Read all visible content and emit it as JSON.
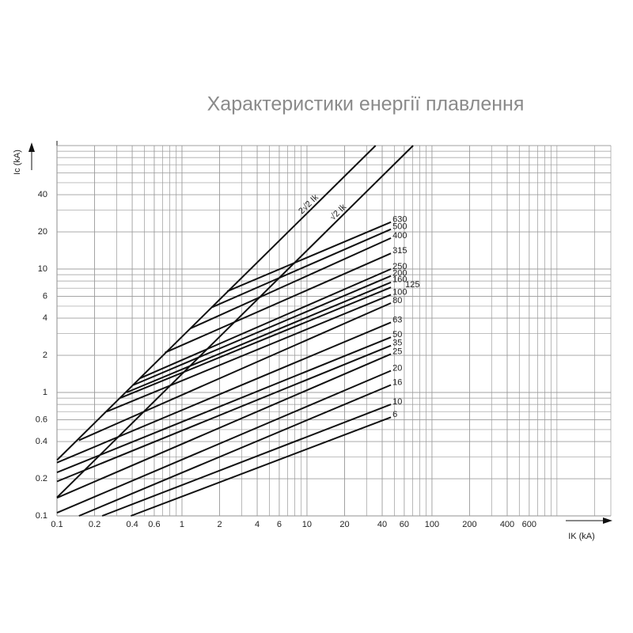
{
  "chart_data": {
    "type": "line",
    "title": "Характеристики енергії плавлення",
    "x_label": "IK (kA)",
    "y_label": "Ic (kA)",
    "xscale": "log",
    "yscale": "log",
    "grid": true,
    "color": "#111111",
    "xlim": [
      0.1,
      2700
    ],
    "ylim": [
      0.1,
      100
    ],
    "xticks": [
      0.1,
      0.2,
      0.4,
      0.6,
      1,
      2,
      4,
      6,
      10,
      20,
      40,
      60,
      100,
      200,
      400,
      600
    ],
    "yticks": [
      0.1,
      0.2,
      0.4,
      0.6,
      1,
      2,
      4,
      6,
      10,
      20,
      40
    ],
    "series": [
      {
        "name": "2√2 Ik",
        "x": [
          0.1,
          35.4
        ],
        "values": [
          0.283,
          100
        ]
      },
      {
        "name": "√2 Ik",
        "x": [
          0.1,
          70.7
        ],
        "values": [
          0.141,
          100
        ]
      },
      {
        "name": "630",
        "x": [
          2.3,
          47
        ],
        "values": [
          6.6,
          24
        ]
      },
      {
        "name": "500",
        "x": [
          1.74,
          47
        ],
        "values": [
          4.9,
          21
        ]
      },
      {
        "name": "400",
        "x": [
          1.17,
          47
        ],
        "values": [
          3.3,
          17.8
        ]
      },
      {
        "name": "315",
        "x": [
          0.73,
          47
        ],
        "values": [
          2.1,
          13.4
        ]
      },
      {
        "name": "250",
        "x": [
          0.46,
          47
        ],
        "values": [
          1.3,
          10
        ]
      },
      {
        "name": "200",
        "x": [
          0.41,
          47
        ],
        "values": [
          1.15,
          8.8
        ]
      },
      {
        "name": "160",
        "x": [
          0.36,
          47
        ],
        "values": [
          1.0,
          7.8
        ]
      },
      {
        "name": "125",
        "x": [
          0.32,
          47
        ],
        "values": [
          0.9,
          7.1
        ]
      },
      {
        "name": "100",
        "x": [
          0.25,
          47
        ],
        "values": [
          0.7,
          6.2
        ]
      },
      {
        "name": "80",
        "x": [
          0.15,
          47
        ],
        "values": [
          0.41,
          5.3
        ]
      },
      {
        "name": "63",
        "x": [
          0.1,
          47
        ],
        "values": [
          0.27,
          3.7
        ]
      },
      {
        "name": "50",
        "x": [
          0.1,
          47
        ],
        "values": [
          0.225,
          2.8
        ]
      },
      {
        "name": "35",
        "x": [
          0.1,
          47
        ],
        "values": [
          0.19,
          2.4
        ]
      },
      {
        "name": "25",
        "x": [
          0.1,
          47
        ],
        "values": [
          0.14,
          2.05
        ]
      },
      {
        "name": "20",
        "x": [
          0.1,
          47
        ],
        "values": [
          0.106,
          1.5
        ]
      },
      {
        "name": "16",
        "x": [
          0.15,
          47
        ],
        "values": [
          0.1,
          1.15
        ]
      },
      {
        "name": "10",
        "x": [
          0.23,
          47
        ],
        "values": [
          0.1,
          0.8
        ]
      },
      {
        "name": "6",
        "x": [
          0.39,
          47
        ],
        "values": [
          0.1,
          0.63
        ]
      }
    ]
  }
}
